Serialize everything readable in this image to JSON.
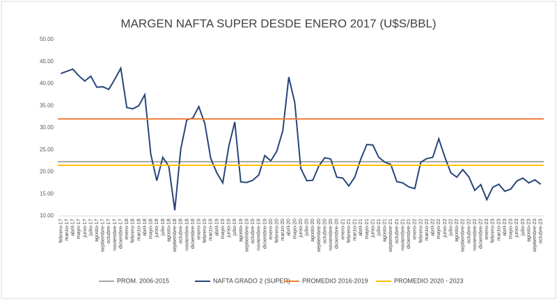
{
  "chart_data": {
    "type": "line",
    "title": "MARGEN NAFTA SUPER DESDE ENERO 2017 (U$S/BBL)",
    "categories": [
      "febrero-17",
      "marzo-17",
      "abril-17",
      "mayo-17",
      "junio-17",
      "julio-17",
      "agosto-17",
      "septiembre-17",
      "octubre-17",
      "noviembre-17",
      "diciembre-17",
      "enero-18",
      "febrero-18",
      "marzo-18",
      "abril-18",
      "mayo-18",
      "junio-18",
      "julio-18",
      "agosto-18",
      "septiembre-18",
      "octubre-18",
      "noviembre-18",
      "diciembre-18",
      "enero-19",
      "febrero-19",
      "marzo-19",
      "abril-19",
      "mayo-19",
      "junio-19",
      "julio-19",
      "agosto-19",
      "septiembre-19",
      "octubre-19",
      "noviembre-19",
      "diciembre-19",
      "enero-20",
      "febrero-20",
      "marzo-20",
      "abril-20",
      "mayo-20",
      "junio-20",
      "julio-20",
      "agosto-20",
      "septiembre-20",
      "octubre-20",
      "noviembre-20",
      "diciembre-20",
      "enero-21",
      "febrero-21",
      "marzo-21",
      "abril-21",
      "mayo-21",
      "junio-21",
      "julio-21",
      "agosto-21",
      "septiembre-21",
      "octubre-21",
      "noviembre-21",
      "diciembre-21",
      "enero-22",
      "febrero-22",
      "marzo-22",
      "abril-22",
      "mayo-22",
      "junio-22",
      "julio-22",
      "agosto-22",
      "septiembre-22",
      "octubre-22",
      "noviembre-22",
      "diciembre-22",
      "enero-23",
      "febrero-23",
      "marzo-23",
      "abril-23",
      "mayo-23",
      "junio-23",
      "julio-23",
      "agosto-23",
      "septiembre-23",
      "octubre-23"
    ],
    "series": [
      {
        "name": "PROM. 2006-2015",
        "color": "#a5a5a5",
        "value": 22.3
      },
      {
        "name": "NAFTA GRADO 2 (SUPER)",
        "color": "#264478",
        "values": [
          42.3,
          42.8,
          43.3,
          41.8,
          40.6,
          41.7,
          39.2,
          39.3,
          38.7,
          41.0,
          43.5,
          34.6,
          34.3,
          35.0,
          37.5,
          24.0,
          18.0,
          23.3,
          21.3,
          11.3,
          25.2,
          31.8,
          32.2,
          34.8,
          31.0,
          23.0,
          19.8,
          17.5,
          25.8,
          31.3,
          17.7,
          17.6,
          18.1,
          19.3,
          23.7,
          22.5,
          24.7,
          29.3,
          41.5,
          35.7,
          20.8,
          18.0,
          18.1,
          21.3,
          23.2,
          22.9,
          18.8,
          18.6,
          16.8,
          18.8,
          22.9,
          26.2,
          26.1,
          23.3,
          22.2,
          21.7,
          17.8,
          17.5,
          16.6,
          16.2,
          22.2,
          23.0,
          23.3,
          27.5,
          23.4,
          19.8,
          18.8,
          20.5,
          18.9,
          15.8,
          17.1,
          13.7,
          16.5,
          17.2,
          15.6,
          16.1,
          17.9,
          18.6,
          17.5,
          18.2,
          17.2
        ]
      },
      {
        "name": "PROMEDIO 2016-2019",
        "color": "#ed7d31",
        "value": 32.0
      },
      {
        "name": "PROMEDIO 2020 - 2023",
        "color": "#ffc000",
        "value": 21.5
      }
    ],
    "ylim": [
      10,
      50
    ],
    "yticks": [
      {
        "value": 10,
        "label": "10.00"
      },
      {
        "value": 15,
        "label": "15.00"
      },
      {
        "value": 20,
        "label": "20.00"
      },
      {
        "value": 25,
        "label": "25.00"
      },
      {
        "value": 30,
        "label": "30.00"
      },
      {
        "value": 35,
        "label": "35.00"
      },
      {
        "value": 40,
        "label": "40.00"
      },
      {
        "value": 45,
        "label": "45.00"
      },
      {
        "value": 50,
        "label": "50.00"
      }
    ]
  }
}
